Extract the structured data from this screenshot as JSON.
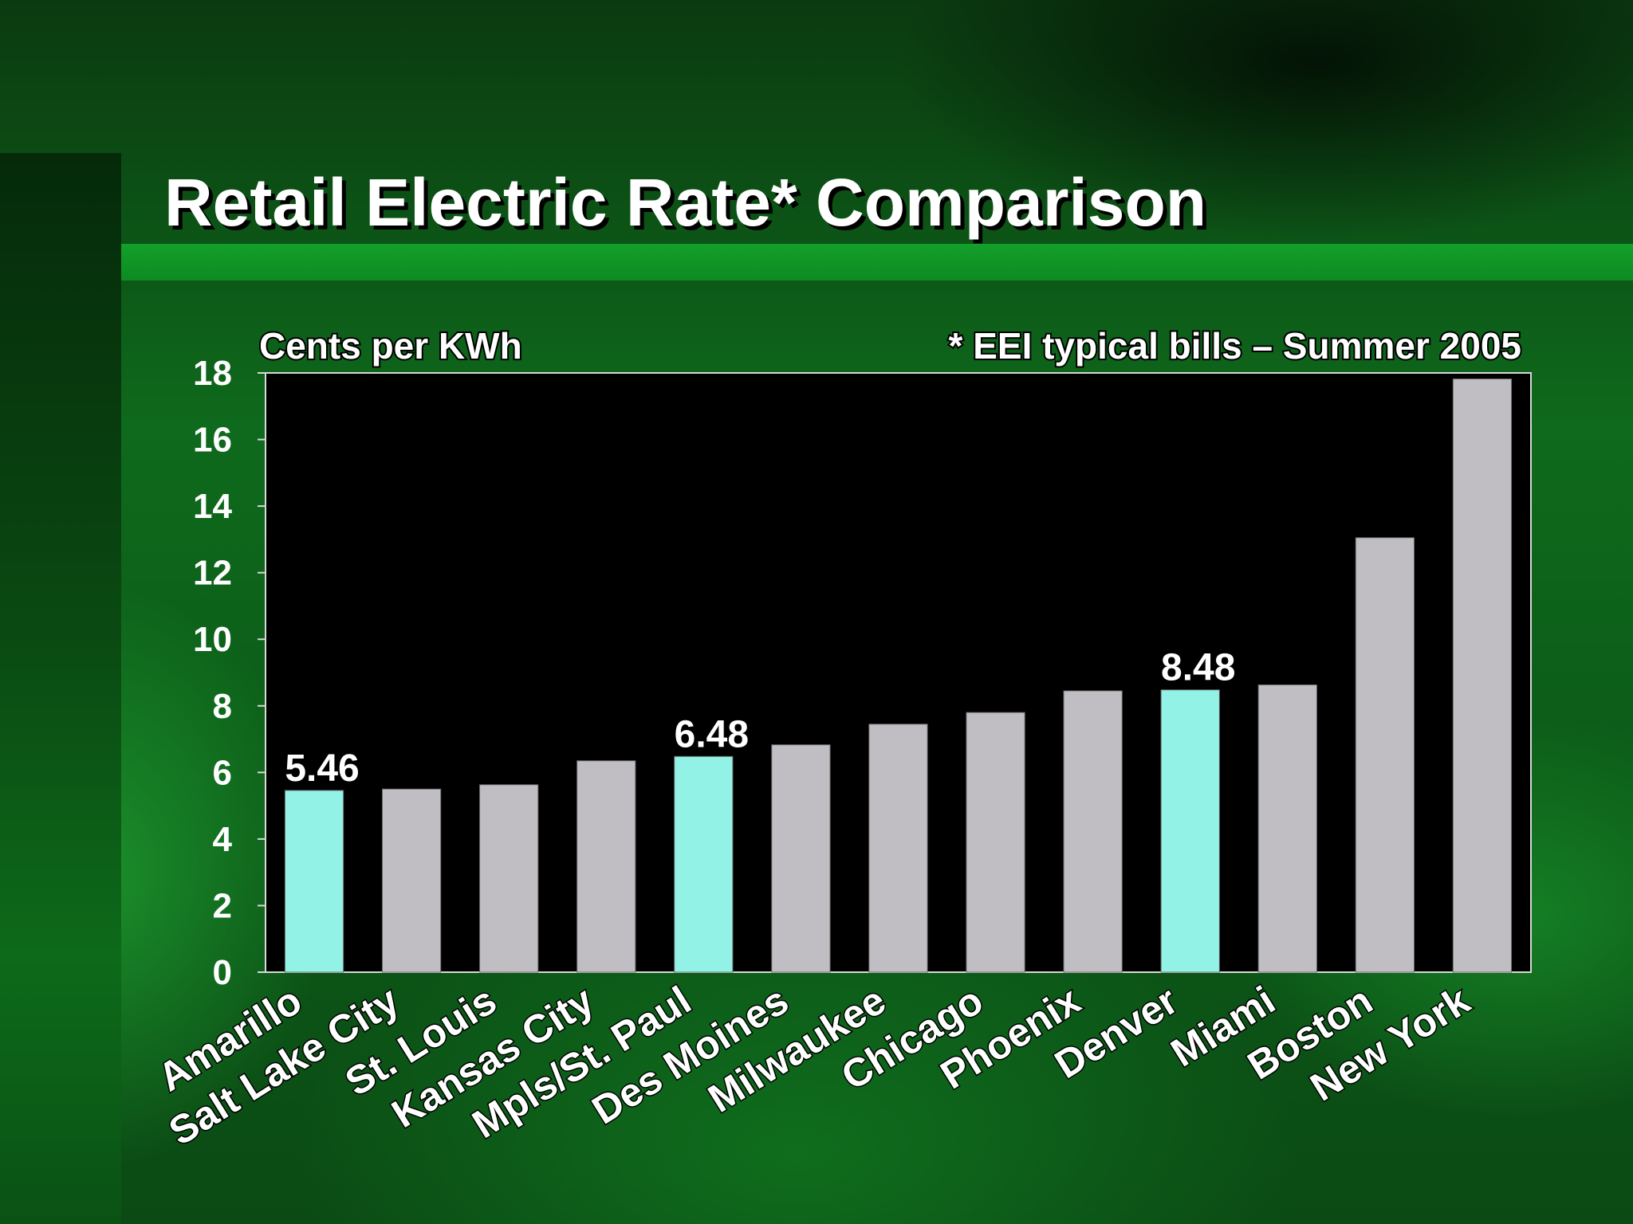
{
  "slide": {
    "title": "Retail Electric Rate* Comparison"
  },
  "colors": {
    "highlight": "#93f2e6",
    "default_bar": "#c0bec3",
    "plot_background": "#000000"
  },
  "chart_data": {
    "type": "bar",
    "ylabel": "Cents per KWh",
    "annotation": "* EEI typical bills – Summer 2005",
    "ylim": [
      0,
      18
    ],
    "yticks": [
      0,
      2,
      4,
      6,
      8,
      10,
      12,
      14,
      16,
      18
    ],
    "grid": false,
    "categories": [
      "Amarillo",
      "Salt Lake City",
      "St. Louis",
      "Kansas City",
      "Mpls/St. Paul",
      "Des Moines",
      "Milwaukee",
      "Chicago",
      "Phoenix",
      "Denver",
      "Miami",
      "Boston",
      "New York"
    ],
    "values": [
      5.46,
      5.5,
      5.63,
      6.35,
      6.48,
      6.83,
      7.45,
      7.8,
      8.45,
      8.48,
      8.63,
      13.05,
      17.82
    ],
    "highlighted": [
      true,
      false,
      false,
      false,
      true,
      false,
      false,
      false,
      false,
      true,
      false,
      false,
      false
    ],
    "data_labels": [
      "5.46",
      "",
      "",
      "",
      "6.48",
      "",
      "",
      "",
      "",
      "8.48",
      "",
      "",
      ""
    ]
  }
}
